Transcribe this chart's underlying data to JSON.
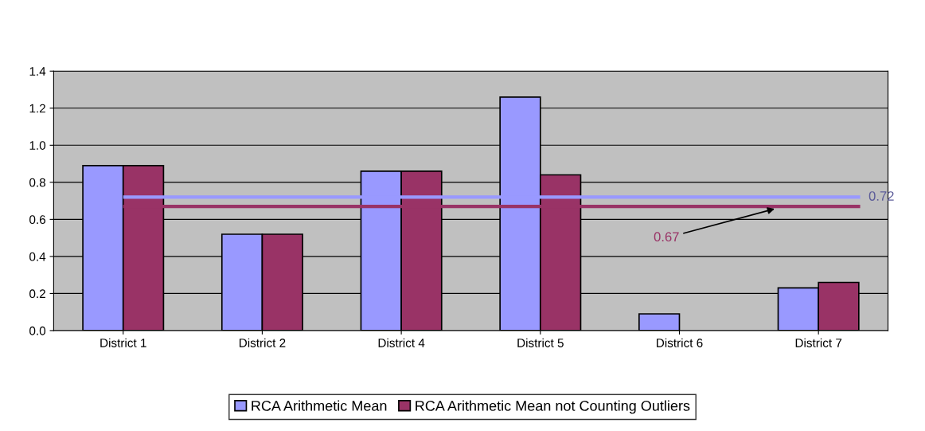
{
  "chart_data": {
    "type": "bar",
    "categories": [
      "District 1",
      "District 2",
      "District 4",
      "District 5",
      "District 6",
      "District 7"
    ],
    "series": [
      {
        "name": "RCA Arithmetic Mean",
        "color": "#9999ff",
        "values": [
          0.89,
          0.52,
          0.86,
          1.26,
          0.09,
          0.23
        ]
      },
      {
        "name": "RCA Arithmetic Mean not Counting Outliers",
        "color": "#993366",
        "values": [
          0.89,
          0.52,
          0.86,
          0.84,
          null,
          0.26
        ]
      }
    ],
    "ylim": [
      0,
      1.4
    ],
    "yticks": [
      {
        "value": 0,
        "label": "0.0"
      },
      {
        "value": 0.2,
        "label": "0.2"
      },
      {
        "value": 0.4,
        "label": "0.4"
      },
      {
        "value": 0.6,
        "label": "0.6"
      },
      {
        "value": 0.8,
        "label": "0.8"
      },
      {
        "value": 1.0,
        "label": "1.0"
      },
      {
        "value": 1.2,
        "label": "1.2"
      },
      {
        "value": 1.4,
        "label": "1.4"
      }
    ],
    "ref_lines": [
      {
        "axis": "y",
        "value": 0.72,
        "label": "0.72",
        "color": "#9999ff"
      },
      {
        "axis": "y",
        "value": 0.67,
        "label": "0.67",
        "color": "#993366"
      }
    ],
    "grid": "y",
    "legend": "bottom"
  }
}
